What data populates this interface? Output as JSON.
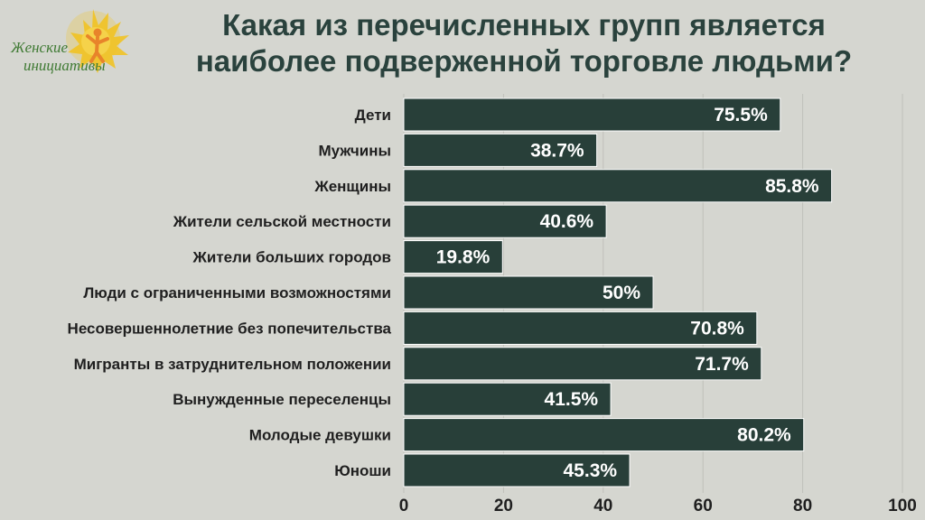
{
  "header": {
    "title_line1": "Какая из перечисленных групп является",
    "title_line2": "наиболее подверженной торговле людьми?",
    "logo_line1": "Женские",
    "logo_line2": "инициативы"
  },
  "colors": {
    "background": "#d5d6d0",
    "bar": "#283f39",
    "title": "#2a423d",
    "logo_sun": "#f2c21b",
    "logo_figure": "#e8842a",
    "logo_text": "#3f7a33"
  },
  "chart_data": {
    "type": "bar",
    "orientation": "horizontal",
    "title": "Какая из перечисленных групп является наиболее подверженной торговле людьми?",
    "xlim": [
      0,
      100
    ],
    "xticks": [
      "0",
      "20",
      "40",
      "60",
      "80",
      "100"
    ],
    "grid": true,
    "categories": [
      "Дети",
      "Мужчины",
      "Женщины",
      "Жители сельской местности",
      "Жители больших городов",
      "Люди с ограниченными возможностями",
      "Несовершеннолетние без попечительства",
      "Мигранты в затруднительном положении",
      "Вынужденные переселенцы",
      "Молодые девушки",
      "Юноши"
    ],
    "values": [
      75.5,
      38.7,
      85.8,
      40.6,
      19.8,
      50,
      70.8,
      71.7,
      41.5,
      80.2,
      45.3
    ],
    "value_labels": [
      "75.5%",
      "38.7%",
      "85.8%",
      "40.6%",
      "19.8%",
      "50%",
      "70.8%",
      "71.7%",
      "41.5%",
      "80.2%",
      "45.3%"
    ]
  }
}
